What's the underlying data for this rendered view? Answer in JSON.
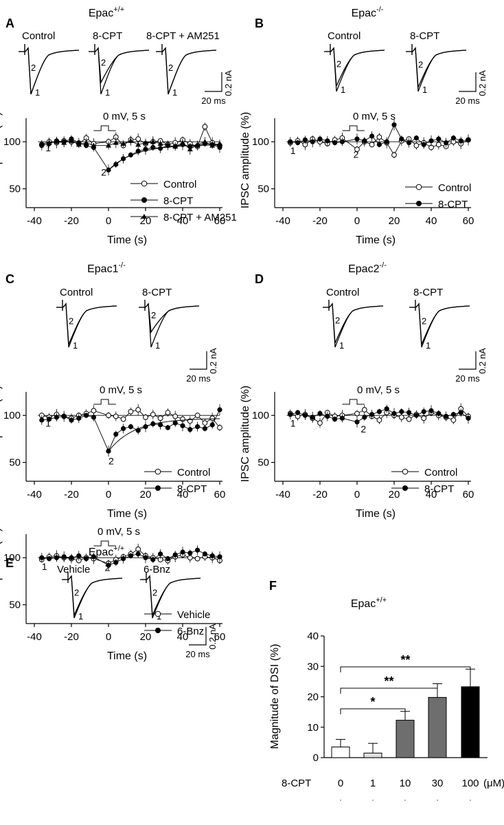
{
  "figure": {
    "panels": [
      {
        "letter": "A",
        "title_base": "Epac",
        "title_sup": "+/+",
        "trace_labels": [
          "Control",
          "8-CPT",
          "8-CPT + AM251"
        ],
        "scale": {
          "amp": "0.2 nA",
          "time": "20 ms"
        }
      },
      {
        "letter": "B",
        "title_base": "Epac",
        "title_sup": "-/-",
        "trace_labels": [
          "Control",
          "8-CPT"
        ],
        "scale": {
          "amp": "0.2 nA",
          "time": "20 ms"
        }
      },
      {
        "letter": "C",
        "title_base": "Epac1",
        "title_sup": "-/-",
        "trace_labels": [
          "Control",
          "8-CPT"
        ],
        "scale": {
          "amp": "0.2 nA",
          "time": "20 ms"
        }
      },
      {
        "letter": "D",
        "title_base": "Epac2",
        "title_sup": "-/-",
        "trace_labels": [
          "Control",
          "8-CPT"
        ],
        "scale": {
          "amp": "0.2 nA",
          "time": "20 ms"
        }
      },
      {
        "letter": "E",
        "title_base": "Epac",
        "title_sup": "+/+",
        "trace_labels": [
          "Vehicle",
          "6-Bnz"
        ],
        "scale": {
          "amp": "0.2 nA",
          "time": "20 ms"
        }
      },
      {
        "letter": "F",
        "title_base": "Epac",
        "title_sup": "+/+"
      }
    ],
    "trace_marks": [
      "1",
      "2"
    ],
    "stim_label": "0 mV, 5 s"
  },
  "chart_data": [
    {
      "panel": "A",
      "type": "scatter",
      "xlabel": "Time (s)",
      "ylabel": "IPSC amplitude (%)",
      "xlim": [
        -40,
        60
      ],
      "ylim": [
        30,
        125
      ],
      "xticks": [
        -40,
        -20,
        0,
        20,
        40,
        60
      ],
      "yticks": [
        50,
        100
      ],
      "series": [
        {
          "name": "Control",
          "marker": "open-circle",
          "x": [
            -36,
            -32,
            -28,
            -24,
            -20,
            -16,
            -12,
            -8,
            0,
            4,
            8,
            12,
            16,
            20,
            24,
            28,
            32,
            36,
            40,
            44,
            48,
            52,
            56,
            60
          ],
          "y": [
            97,
            100,
            99,
            101,
            100,
            98,
            104,
            98,
            100,
            105,
            96,
            102,
            103,
            98,
            100,
            101,
            97,
            99,
            102,
            98,
            95,
            116,
            99,
            96
          ]
        },
        {
          "name": "8-CPT",
          "marker": "filled-circle",
          "x": [
            -36,
            -32,
            -28,
            -24,
            -20,
            -16,
            -12,
            -8,
            0,
            4,
            8,
            12,
            16,
            20,
            24,
            28,
            32,
            36,
            40,
            44,
            48,
            52,
            56,
            60
          ],
          "y": [
            96,
            98,
            101,
            100,
            103,
            99,
            96,
            94,
            70,
            76,
            82,
            86,
            90,
            92,
            94,
            93,
            96,
            95,
            97,
            95,
            96,
            98,
            97,
            94
          ]
        },
        {
          "name": "8-CPT + AM251",
          "marker": "filled-triangle",
          "x": [
            -36,
            -32,
            -28,
            -24,
            -20,
            -16,
            -12,
            -8,
            0,
            4,
            8,
            12,
            16,
            20,
            24,
            28,
            32,
            36,
            40,
            44,
            48,
            52,
            56,
            60
          ],
          "y": [
            98,
            99,
            100,
            99,
            101,
            97,
            99,
            96,
            96,
            99,
            98,
            101,
            97,
            99,
            100,
            98,
            96,
            95,
            99,
            92,
            97,
            100,
            96,
            98
          ]
        }
      ],
      "annotations": [
        {
          "text": "1",
          "x": -34,
          "y": 90
        },
        {
          "text": "2",
          "x": -4,
          "y": 64
        }
      ]
    },
    {
      "panel": "B",
      "type": "scatter",
      "xlabel": "Time (s)",
      "ylabel": "IPSC amplitude (%)",
      "xlim": [
        -40,
        60
      ],
      "ylim": [
        30,
        125
      ],
      "xticks": [
        -40,
        -20,
        0,
        20,
        40,
        60
      ],
      "yticks": [
        50,
        100
      ],
      "series": [
        {
          "name": "Control",
          "marker": "open-circle",
          "x": [
            -36,
            -32,
            -28,
            -24,
            -20,
            -16,
            -12,
            -8,
            0,
            4,
            8,
            12,
            16,
            20,
            24,
            28,
            32,
            36,
            40,
            44,
            48,
            52,
            56,
            60
          ],
          "y": [
            99,
            101,
            97,
            103,
            100,
            98,
            102,
            104,
            92,
            100,
            97,
            105,
            99,
            86,
            101,
            103,
            96,
            99,
            94,
            97,
            95,
            100,
            98,
            102
          ]
        },
        {
          "name": "8-CPT",
          "marker": "filled-circle",
          "x": [
            -36,
            -32,
            -28,
            -24,
            -20,
            -16,
            -12,
            -8,
            0,
            4,
            8,
            12,
            16,
            20,
            24,
            28,
            32,
            36,
            40,
            44,
            48,
            52,
            56,
            60
          ],
          "y": [
            100,
            99,
            102,
            100,
            103,
            101,
            99,
            100,
            103,
            101,
            106,
            97,
            100,
            118,
            103,
            99,
            104,
            97,
            101,
            103,
            99,
            104,
            101,
            102
          ]
        }
      ],
      "annotations": [
        {
          "text": "1",
          "x": -36,
          "y": 87
        },
        {
          "text": "2",
          "x": -2,
          "y": 83
        }
      ]
    },
    {
      "panel": "C",
      "type": "scatter",
      "xlabel": "Time (s)",
      "ylabel": "IPSC amplitude (%)",
      "xlim": [
        -40,
        60
      ],
      "ylim": [
        30,
        125
      ],
      "xticks": [
        -40,
        -20,
        0,
        20,
        40,
        60
      ],
      "yticks": [
        50,
        100
      ],
      "series": [
        {
          "name": "Control",
          "marker": "open-circle",
          "x": [
            -36,
            -32,
            -28,
            -24,
            -20,
            -16,
            -12,
            -8,
            0,
            4,
            8,
            12,
            16,
            20,
            24,
            28,
            32,
            36,
            40,
            44,
            48,
            52,
            56,
            60
          ],
          "y": [
            100,
            98,
            101,
            99,
            97,
            100,
            102,
            105,
            100,
            99,
            96,
            104,
            106,
            98,
            101,
            97,
            103,
            99,
            96,
            94,
            100,
            92,
            97,
            87
          ]
        },
        {
          "name": "8-CPT",
          "marker": "filled-circle",
          "x": [
            -36,
            -32,
            -28,
            -24,
            -20,
            -16,
            -12,
            -8,
            0,
            4,
            8,
            12,
            16,
            20,
            24,
            28,
            32,
            36,
            40,
            44,
            48,
            52,
            56,
            60
          ],
          "y": [
            95,
            96,
            98,
            99,
            95,
            97,
            100,
            98,
            62,
            80,
            86,
            88,
            84,
            88,
            91,
            90,
            87,
            92,
            89,
            85,
            88,
            86,
            90,
            106
          ]
        }
      ],
      "annotations": [
        {
          "text": "1",
          "x": -34,
          "y": 88
        },
        {
          "text": "2",
          "x": 0,
          "y": 48
        }
      ]
    },
    {
      "panel": "D",
      "type": "scatter",
      "xlabel": "Time (s)",
      "ylabel": "IPSC amplitude (%)",
      "xlim": [
        -40,
        60
      ],
      "ylim": [
        30,
        125
      ],
      "xticks": [
        -40,
        -20,
        0,
        20,
        40,
        60
      ],
      "yticks": [
        50,
        100
      ],
      "series": [
        {
          "name": "Control",
          "marker": "open-circle",
          "x": [
            -36,
            -32,
            -28,
            -24,
            -20,
            -16,
            -12,
            -8,
            0,
            4,
            8,
            12,
            16,
            20,
            24,
            28,
            32,
            36,
            40,
            44,
            48,
            52,
            56,
            60
          ],
          "y": [
            102,
            99,
            101,
            97,
            92,
            103,
            99,
            100,
            102,
            106,
            99,
            95,
            103,
            100,
            98,
            96,
            101,
            97,
            103,
            100,
            98,
            95,
            107,
            99
          ]
        },
        {
          "name": "8-CPT",
          "marker": "filled-circle",
          "x": [
            -36,
            -32,
            -28,
            -24,
            -20,
            -16,
            -12,
            -8,
            0,
            4,
            8,
            12,
            16,
            20,
            24,
            28,
            32,
            36,
            40,
            44,
            48,
            52,
            56,
            60
          ],
          "y": [
            101,
            103,
            100,
            98,
            102,
            99,
            96,
            97,
            93,
            98,
            101,
            104,
            107,
            102,
            104,
            103,
            100,
            104,
            105,
            102,
            99,
            101,
            103,
            97
          ]
        }
      ],
      "annotations": [
        {
          "text": "1",
          "x": -36,
          "y": 88
        },
        {
          "text": "2",
          "x": 2,
          "y": 82
        }
      ]
    },
    {
      "panel": "E",
      "type": "scatter",
      "xlabel": "Time (s)",
      "ylabel": "IPSC amplitude (%)",
      "xlim": [
        -40,
        60
      ],
      "ylim": [
        30,
        125
      ],
      "xticks": [
        -40,
        -20,
        0,
        20,
        40,
        60
      ],
      "yticks": [
        50,
        100
      ],
      "series": [
        {
          "name": "Vehicle",
          "marker": "open-circle",
          "x": [
            -36,
            -32,
            -28,
            -24,
            -20,
            -16,
            -12,
            -8,
            0,
            4,
            8,
            12,
            16,
            20,
            24,
            28,
            32,
            36,
            40,
            44,
            48,
            52,
            56,
            60
          ],
          "y": [
            98,
            101,
            102,
            100,
            99,
            97,
            100,
            99,
            94,
            98,
            101,
            104,
            109,
            102,
            100,
            98,
            97,
            101,
            103,
            100,
            99,
            101,
            100,
            97
          ]
        },
        {
          "name": "6-Bnz",
          "marker": "filled-circle",
          "x": [
            -36,
            -32,
            -28,
            -24,
            -20,
            -16,
            -12,
            -8,
            0,
            4,
            8,
            12,
            16,
            20,
            24,
            28,
            32,
            36,
            40,
            44,
            48,
            52,
            56,
            60
          ],
          "y": [
            100,
            99,
            100,
            101,
            100,
            102,
            99,
            101,
            92,
            95,
            99,
            102,
            104,
            100,
            98,
            104,
            99,
            103,
            106,
            105,
            108,
            104,
            102,
            101
          ]
        }
      ],
      "annotations": [
        {
          "text": "1",
          "x": -36,
          "y": 87
        },
        {
          "text": "2",
          "x": -2,
          "y": 86
        }
      ]
    },
    {
      "panel": "F",
      "type": "bar",
      "ylabel": "Magnitude of DSI (%)",
      "xlabel_left": "8-CPT",
      "xlabel_unit": "(μM)",
      "categories": [
        "0",
        "1",
        "10",
        "30",
        "100"
      ],
      "values": [
        3.5,
        1.5,
        12.3,
        19.8,
        23.3
      ],
      "errors": [
        2.5,
        3.2,
        2.9,
        4.5,
        5.8
      ],
      "colors": [
        "#ffffff",
        "#e0e0e0",
        "#6e6e6e",
        "#6e6e6e",
        "#000000"
      ],
      "ylim": [
        0,
        40
      ],
      "yticks": [
        0,
        10,
        20,
        30,
        40
      ],
      "significance": [
        {
          "from": 0,
          "to": 2,
          "label": "*"
        },
        {
          "from": 0,
          "to": 3,
          "label": "**"
        },
        {
          "from": 0,
          "to": 4,
          "label": "**"
        }
      ]
    }
  ]
}
